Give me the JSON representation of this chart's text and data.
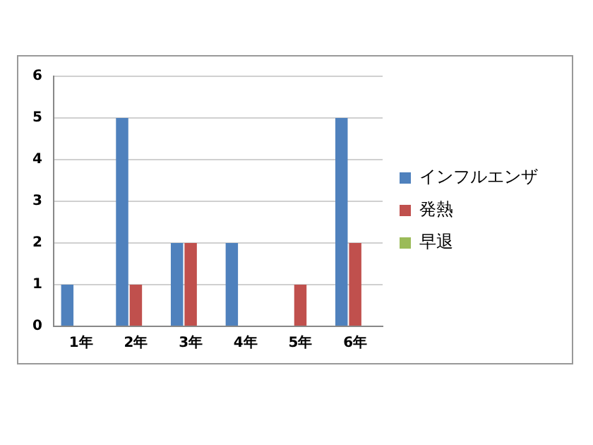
{
  "chart_data": {
    "type": "bar",
    "categories": [
      "1年",
      "2年",
      "3年",
      "4年",
      "5年",
      "6年"
    ],
    "series": [
      {
        "name": "インフルエンザ",
        "color": "#4f81bd",
        "values": [
          1,
          5,
          2,
          2,
          0,
          5
        ]
      },
      {
        "name": "発熱",
        "color": "#c0504d",
        "values": [
          0,
          1,
          2,
          0,
          1,
          2
        ]
      },
      {
        "name": "早退",
        "color": "#9bbb59",
        "values": [
          0,
          0,
          0,
          0,
          0,
          0
        ]
      }
    ],
    "ylim": [
      0,
      6
    ],
    "yticks": [
      0,
      1,
      2,
      3,
      4,
      5,
      6
    ],
    "grid": "y",
    "legend": "right"
  }
}
